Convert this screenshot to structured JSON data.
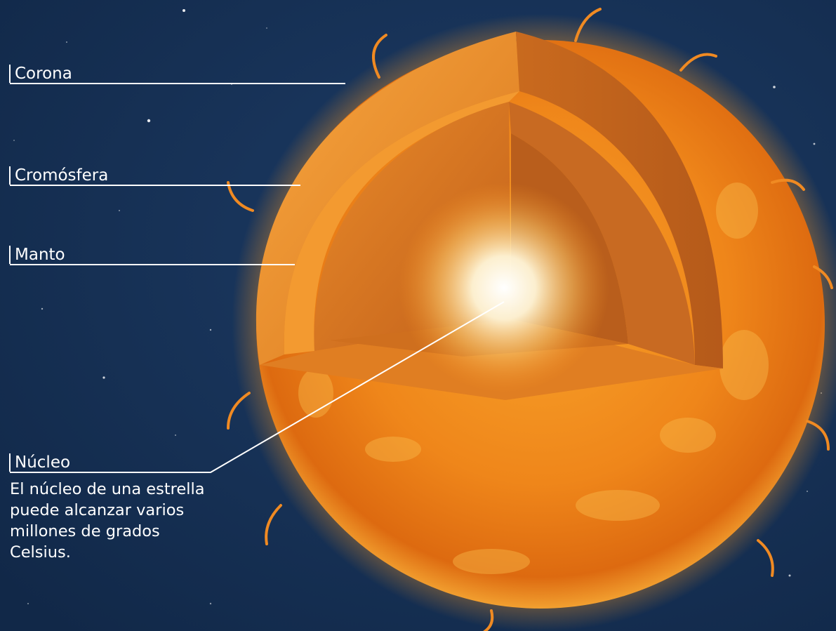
{
  "diagram": {
    "labels": {
      "corona": "Corona",
      "cromosfera": "Cromósfera",
      "manto": "Manto",
      "nucleo": "Núcleo"
    },
    "nucleo_description": "El núcleo de una estrella puede alcanzar varios millones de grados Celsius."
  },
  "colors": {
    "background": "#163258",
    "label_text": "#ffffff",
    "leader_line": "#ffffff",
    "sun_outer": "#e8720c",
    "sun_mid": "#f59a1e",
    "core_glow": "#fff6d8"
  }
}
